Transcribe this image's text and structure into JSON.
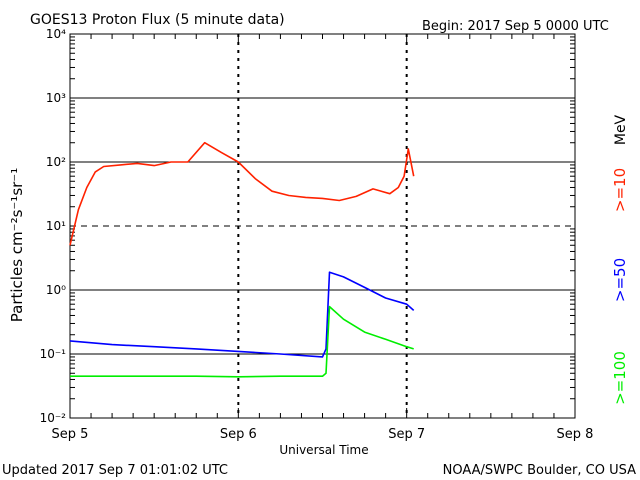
{
  "header": {
    "title": "GOES13 Proton Flux (5 minute data)",
    "begin": "Begin: 2017 Sep 5 0000 UTC"
  },
  "footer": {
    "updated": "Updated 2017 Sep  7 01:01:02 UTC",
    "credit": "NOAA/SWPC Boulder, CO USA"
  },
  "colors": {
    "ten_mev": "#ff2200",
    "fifty_mev": "#0000ff",
    "hundred_mev": "#00ee00",
    "grid": "#000000"
  },
  "chart_data": {
    "type": "line",
    "title": "GOES13 Proton Flux (5 minute data)",
    "xlabel": "Universal Time",
    "ylabel": "Particles cm⁻²s⁻¹sr⁻¹",
    "y_scale": "log",
    "ylim": [
      0.01,
      10000
    ],
    "xlim": [
      "2017-09-05 00:00",
      "2017-09-08 00:00"
    ],
    "x_ticks": [
      "Sep 5",
      "Sep 6",
      "Sep 7",
      "Sep 8"
    ],
    "y_ticks": [
      "10⁻²",
      "10⁻¹",
      "10⁰",
      "10¹",
      "10²",
      "10³",
      "10⁴"
    ],
    "threshold_line": 10,
    "legend_placement": "right side, vertical",
    "units_label": "MeV",
    "series": [
      {
        "name": ">=10",
        "color": "#ff2200",
        "x": [
          "2017-09-05 00:00",
          "2017-09-05 01:12",
          "2017-09-05 02:24",
          "2017-09-05 03:36",
          "2017-09-05 04:48",
          "2017-09-05 07:12",
          "2017-09-05 09:36",
          "2017-09-05 12:00",
          "2017-09-05 14:24",
          "2017-09-05 16:48",
          "2017-09-05 19:12",
          "2017-09-05 21:36",
          "2017-09-06 00:00",
          "2017-09-06 02:24",
          "2017-09-06 04:48",
          "2017-09-06 07:12",
          "2017-09-06 09:36",
          "2017-09-06 12:00",
          "2017-09-06 14:24",
          "2017-09-06 16:48",
          "2017-09-06 19:12",
          "2017-09-06 21:36",
          "2017-09-06 22:48",
          "2017-09-06 23:38",
          "2017-09-07 00:14",
          "2017-09-07 01:00"
        ],
        "values": [
          5,
          18,
          40,
          70,
          85,
          90,
          95,
          88,
          100,
          100,
          200,
          140,
          100,
          55,
          35,
          30,
          28,
          27,
          25,
          29,
          38,
          32,
          40,
          60,
          160,
          60
        ]
      },
      {
        "name": ">=50",
        "color": "#0000ff",
        "x": [
          "2017-09-05 00:00",
          "2017-09-05 06:00",
          "2017-09-05 12:00",
          "2017-09-05 18:00",
          "2017-09-06 00:00",
          "2017-09-06 06:00",
          "2017-09-06 12:00",
          "2017-09-06 12:30",
          "2017-09-06 13:00",
          "2017-09-06 15:00",
          "2017-09-06 18:00",
          "2017-09-06 21:00",
          "2017-09-07 00:00",
          "2017-09-07 01:00"
        ],
        "values": [
          0.16,
          0.14,
          0.13,
          0.12,
          0.11,
          0.1,
          0.09,
          0.12,
          1.9,
          1.6,
          1.1,
          0.75,
          0.6,
          0.48
        ]
      },
      {
        "name": ">=100",
        "color": "#00ee00",
        "x": [
          "2017-09-05 00:00",
          "2017-09-05 06:00",
          "2017-09-05 12:00",
          "2017-09-05 18:00",
          "2017-09-06 00:00",
          "2017-09-06 06:00",
          "2017-09-06 12:00",
          "2017-09-06 12:30",
          "2017-09-06 13:00",
          "2017-09-06 15:00",
          "2017-09-06 18:00",
          "2017-09-06 21:00",
          "2017-09-07 00:00",
          "2017-09-07 01:00"
        ],
        "values": [
          0.045,
          0.045,
          0.045,
          0.045,
          0.044,
          0.045,
          0.045,
          0.05,
          0.55,
          0.35,
          0.22,
          0.17,
          0.13,
          0.12
        ]
      }
    ]
  }
}
